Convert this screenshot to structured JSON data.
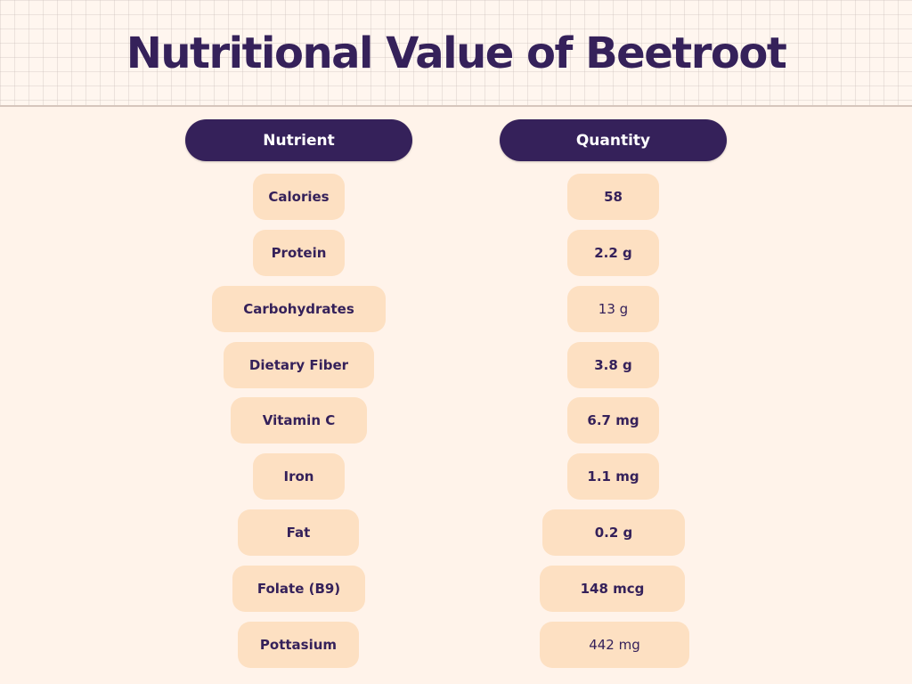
{
  "title": "Nutritional Value of Beetroot",
  "columns": {
    "nutrient": "Nutrient",
    "quantity": "Quantity"
  },
  "rows": [
    {
      "nutrient": "Calories",
      "quantity": "58"
    },
    {
      "nutrient": "Protein",
      "quantity": "2.2 g"
    },
    {
      "nutrient": "Carbohydrates",
      "quantity": "13 g"
    },
    {
      "nutrient": "Dietary Fiber",
      "quantity": "3.8 g"
    },
    {
      "nutrient": "Vitamin C",
      "quantity": "6.7 mg"
    },
    {
      "nutrient": "Iron",
      "quantity": "1.1 mg"
    },
    {
      "nutrient": "Fat",
      "quantity": "0.2 g"
    },
    {
      "nutrient": "Folate (B9)",
      "quantity": "148 mcg"
    },
    {
      "nutrient": "Pottasium",
      "quantity": "442 mg"
    }
  ],
  "colors": {
    "background": "#fff3ea",
    "header_pill": "#35215a",
    "cell": "#fde0c2",
    "text": "#35215a"
  }
}
